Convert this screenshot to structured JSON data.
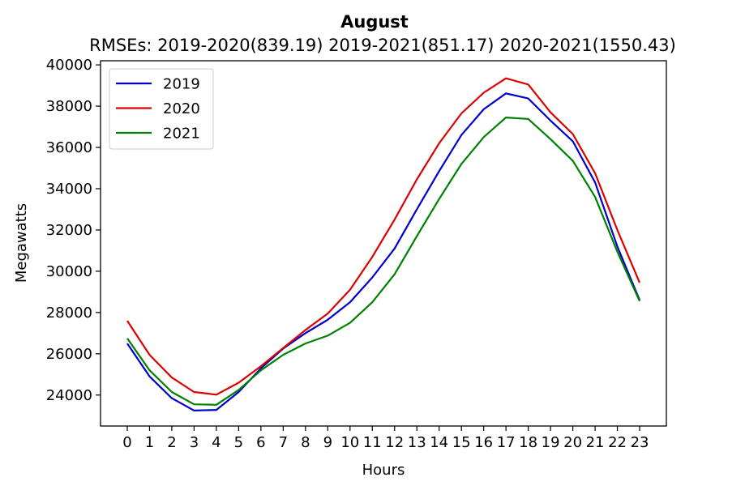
{
  "chart_data": {
    "type": "line",
    "title": "August",
    "subtitle": "RMSEs: 2019-2020(839.19) 2019-2021(851.17) 2020-2021(1550.43)",
    "xlabel": "Hours",
    "ylabel": "Megawatts",
    "x": [
      0,
      1,
      2,
      3,
      4,
      5,
      6,
      7,
      8,
      9,
      10,
      11,
      12,
      13,
      14,
      15,
      16,
      17,
      18,
      19,
      20,
      21,
      22,
      23
    ],
    "xlim": [
      -1.2,
      24.2
    ],
    "ylim": [
      22500,
      40200
    ],
    "yticks": [
      24000,
      26000,
      28000,
      30000,
      32000,
      34000,
      36000,
      38000,
      40000
    ],
    "grid": false,
    "legend_position": "top-left",
    "series": [
      {
        "name": "2019",
        "color": "#0000cc",
        "values": [
          26500,
          24900,
          23850,
          23250,
          23280,
          24150,
          25300,
          26250,
          27000,
          27650,
          28500,
          29700,
          31100,
          33000,
          34850,
          36600,
          37850,
          38620,
          38370,
          37300,
          36300,
          34300,
          31200,
          28600
        ]
      },
      {
        "name": "2020",
        "color": "#dd0000",
        "values": [
          27600,
          25950,
          24850,
          24150,
          24020,
          24600,
          25400,
          26280,
          27150,
          27950,
          29100,
          30700,
          32500,
          34450,
          36200,
          37650,
          38650,
          39350,
          39050,
          37700,
          36650,
          34750,
          32000,
          29450
        ]
      },
      {
        "name": "2021",
        "color": "#008000",
        "values": [
          26750,
          25200,
          24150,
          23550,
          23530,
          24250,
          25200,
          25950,
          26500,
          26880,
          27500,
          28500,
          29850,
          31700,
          33500,
          35200,
          36500,
          37450,
          37380,
          36400,
          35350,
          33600,
          30950,
          28550
        ]
      }
    ]
  }
}
